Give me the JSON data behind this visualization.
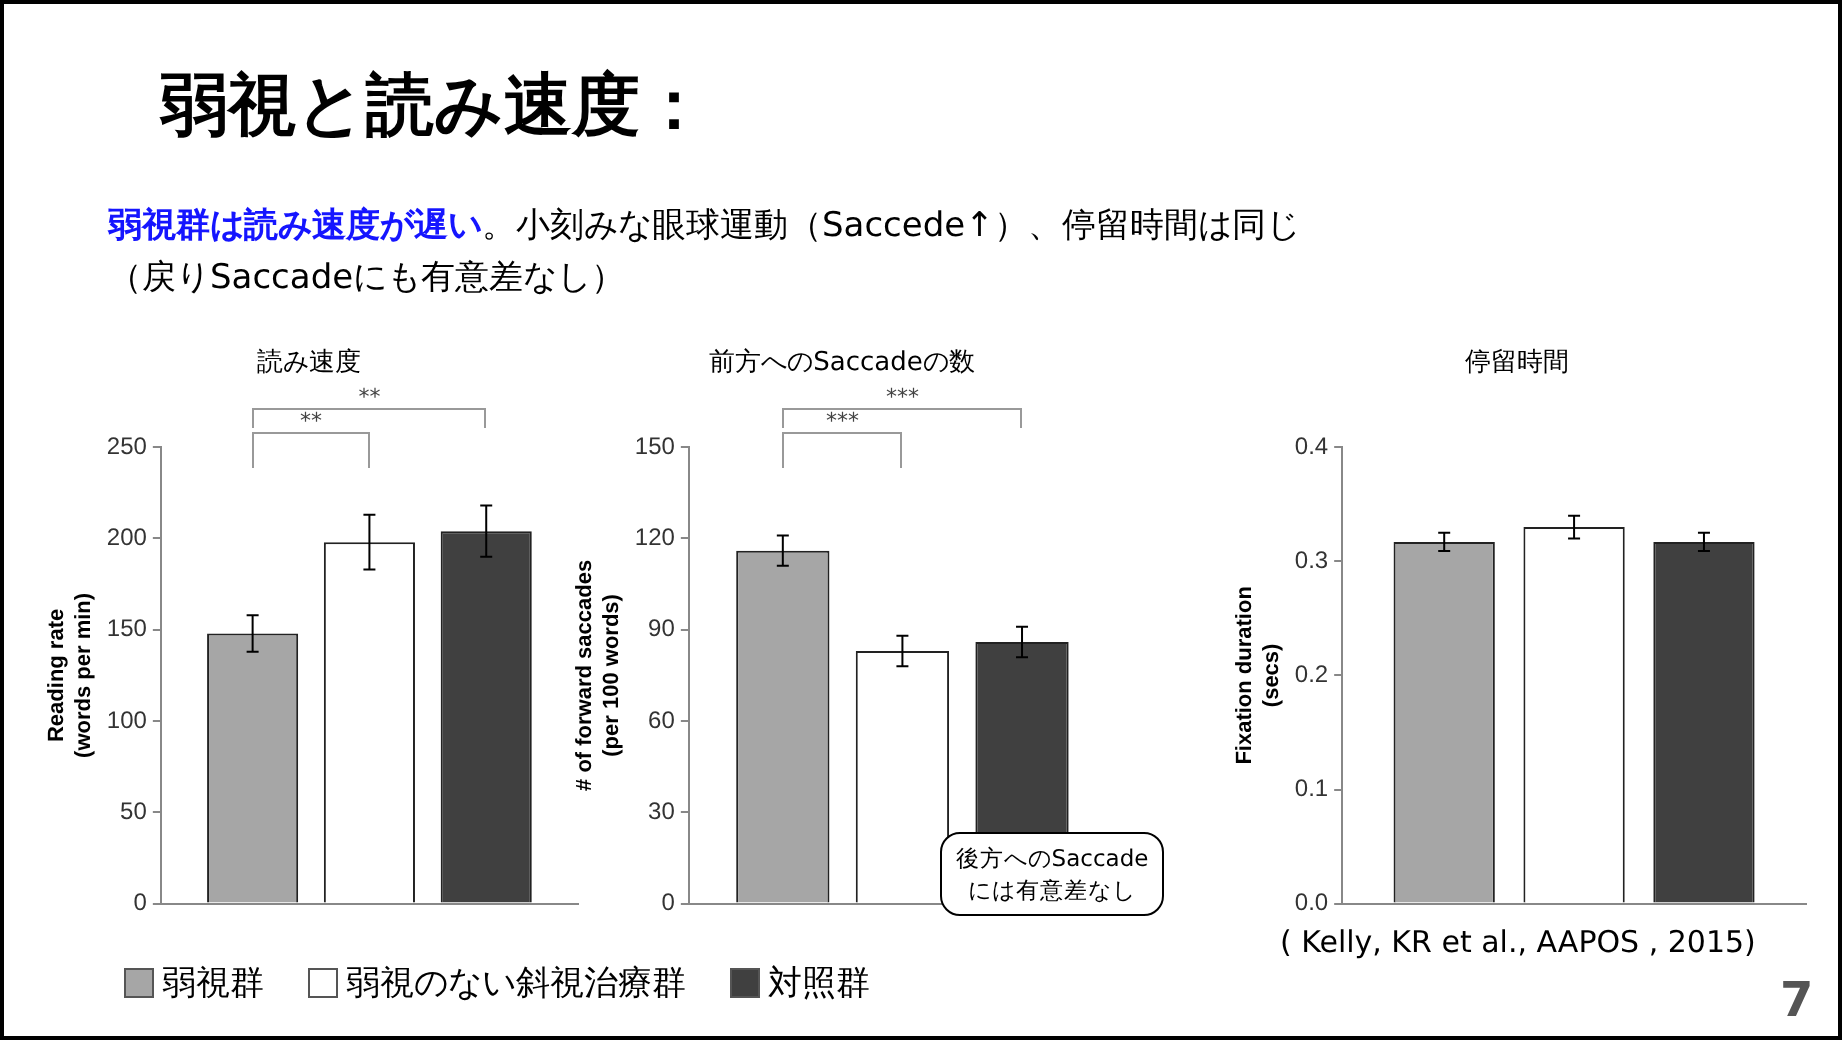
{
  "chart_data": [
    {
      "type": "bar",
      "title": "読み速度",
      "ylabel": "Reading rate (words per min)",
      "categories": [
        null
      ],
      "series": [
        {
          "name": "弱視群",
          "color": "#a6a6a6",
          "values": [
            148
          ],
          "errors": [
            10
          ]
        },
        {
          "name": "弱視のない斜視治療群",
          "color": "#ffffff",
          "values": [
            198
          ],
          "errors": [
            15
          ]
        },
        {
          "name": "対照群",
          "color": "#404040",
          "values": [
            204
          ],
          "errors": [
            14
          ]
        }
      ],
      "ylim": [
        0,
        250
      ],
      "yticks": [
        0,
        50,
        100,
        150,
        200,
        250
      ],
      "grid": false,
      "legend": "bottom",
      "tick_labels": "y",
      "annotations": [
        "弱視と読み速度：",
        "弱視群は読み速度が遅い",
        "。小刻みな眼球運動（Saccede↑）、停留時間は同じ",
        "（戻りSaccadeにも有意差なし）",
        "**",
        "**"
      ]
    },
    {
      "type": "bar",
      "title": "前方へのSaccadeの数",
      "ylabel": "# of forward saccades (per 100 words)",
      "categories": [
        null
      ],
      "series": [
        {
          "color": "#a6a6a6",
          "values": [
            116
          ],
          "errors": [
            5
          ]
        },
        {
          "color": "#ffffff",
          "values": [
            83
          ],
          "errors": [
            5
          ]
        },
        {
          "color": "#404040",
          "values": [
            86
          ],
          "errors": [
            5
          ]
        }
      ],
      "ylim": [
        0,
        150
      ],
      "yticks": [
        0,
        30,
        60,
        90,
        120,
        150
      ],
      "grid": false,
      "tick_labels": "y",
      "annotations": [
        "***",
        "***",
        "後方へのSaccadeには有意差なし"
      ]
    },
    {
      "type": "bar",
      "title": "停留時間",
      "ylabel": "Fixation duration (secs)",
      "categories": [
        null
      ],
      "series": [
        {
          "color": "#a6a6a6",
          "values": [
            0.317
          ],
          "errors": [
            0.008
          ]
        },
        {
          "color": "#ffffff",
          "values": [
            0.33
          ],
          "errors": [
            0.01
          ]
        },
        {
          "color": "#404040",
          "values": [
            0.317
          ],
          "errors": [
            0.008
          ]
        }
      ],
      "ylim": [
        0,
        0.4
      ],
      "yticks": [
        {
          "value": 0,
          "label": "0.0"
        },
        0.1,
        0.2,
        0.3,
        0.4
      ],
      "grid": false,
      "tick_labels": "y",
      "annotations": [
        "( Kelly, KR et al., AAPOS , 2015)",
        "7"
      ]
    }
  ]
}
